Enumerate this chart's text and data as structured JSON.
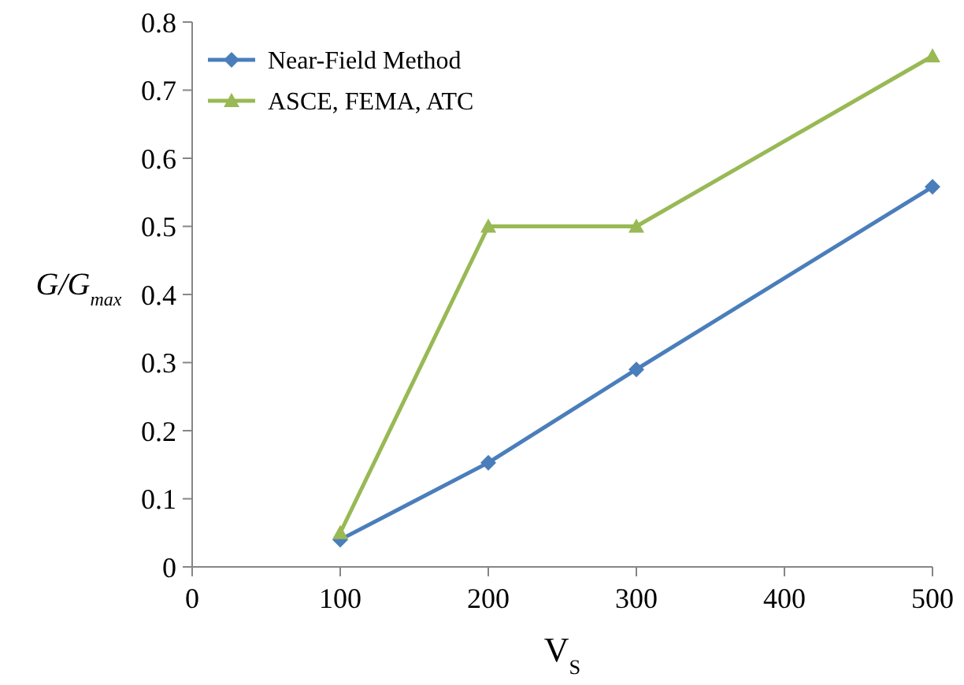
{
  "chart_data": {
    "type": "line",
    "xlabel": "V$_{S}$",
    "ylabel": "G/G$_{max}$",
    "x": [
      100,
      200,
      300,
      500
    ],
    "series": [
      {
        "name": "Near-Field Method",
        "color": "#4a7ebb",
        "marker": "diamond",
        "values": [
          0.04,
          0.153,
          0.29,
          0.558
        ]
      },
      {
        "name": "ASCE, FEMA, ATC",
        "color": "#98b954",
        "marker": "triangle",
        "values": [
          0.05,
          0.5,
          0.5,
          0.75
        ]
      }
    ],
    "xlim": [
      0,
      500
    ],
    "xticks": [
      0,
      100,
      200,
      300,
      400,
      500
    ],
    "ylim": [
      0,
      0.8
    ],
    "yticks": [
      0,
      0.1,
      0.2,
      0.3,
      0.4,
      0.5,
      0.6,
      0.7,
      0.8
    ],
    "grid": false,
    "legend": "top left",
    "line_style": "solid"
  }
}
